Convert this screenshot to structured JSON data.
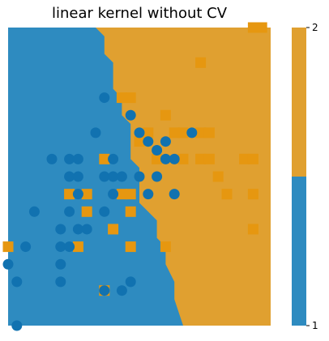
{
  "chart_data": {
    "type": "heatmap",
    "title": "linear kernel without CV",
    "xlabel": "",
    "ylabel": "",
    "xlim": [
      0,
      30
    ],
    "ylim": [
      0,
      34
    ],
    "grid": false,
    "colors": {
      "class1": "#2e8bc0",
      "class2": "#e0a030",
      "point1": "#1172b0",
      "point2": "#e69710"
    },
    "colorbar": {
      "ticks": [
        1,
        2
      ],
      "placement": "right"
    },
    "decision_boundary": {
      "x": [
        10,
        11,
        11,
        12,
        12,
        13,
        13,
        14,
        14,
        15,
        15,
        16,
        17,
        17,
        18,
        18,
        19,
        19,
        20
      ],
      "y": [
        34,
        33,
        31,
        30,
        27,
        26,
        24,
        23,
        19,
        18,
        14,
        13,
        12,
        10,
        9,
        7,
        5,
        3,
        0
      ]
    },
    "class1_points": [
      [
        11,
        26
      ],
      [
        14,
        24
      ],
      [
        15,
        22
      ],
      [
        10,
        22
      ],
      [
        21,
        22
      ],
      [
        16,
        21
      ],
      [
        18,
        21
      ],
      [
        17,
        20
      ],
      [
        18,
        19
      ],
      [
        19,
        19
      ],
      [
        5,
        19
      ],
      [
        7,
        19
      ],
      [
        8,
        19
      ],
      [
        12,
        19
      ],
      [
        7,
        17
      ],
      [
        8,
        17
      ],
      [
        11,
        17
      ],
      [
        12,
        17
      ],
      [
        13,
        17
      ],
      [
        15,
        17
      ],
      [
        17,
        17
      ],
      [
        8,
        15
      ],
      [
        12,
        15
      ],
      [
        16,
        15
      ],
      [
        19,
        15
      ],
      [
        3,
        13
      ],
      [
        7,
        13
      ],
      [
        11,
        13
      ],
      [
        6,
        11
      ],
      [
        8,
        11
      ],
      [
        9,
        11
      ],
      [
        2,
        9
      ],
      [
        6,
        9
      ],
      [
        7,
        9
      ],
      [
        0,
        7
      ],
      [
        6,
        7
      ],
      [
        1,
        5
      ],
      [
        6,
        5
      ],
      [
        14,
        5
      ],
      [
        11,
        4
      ],
      [
        13,
        4
      ],
      [
        1,
        0
      ]
    ],
    "class2_points": [
      [
        28,
        34
      ],
      [
        29,
        34
      ],
      [
        22,
        30
      ],
      [
        13,
        26
      ],
      [
        14,
        26
      ],
      [
        18,
        24
      ],
      [
        16,
        22
      ],
      [
        19,
        22
      ],
      [
        20,
        22
      ],
      [
        22,
        22
      ],
      [
        23,
        22
      ],
      [
        15,
        21
      ],
      [
        11,
        19
      ],
      [
        17,
        19
      ],
      [
        20,
        19
      ],
      [
        22,
        19
      ],
      [
        23,
        19
      ],
      [
        27,
        19
      ],
      [
        28,
        19
      ],
      [
        24,
        17
      ],
      [
        7,
        15
      ],
      [
        9,
        15
      ],
      [
        13,
        15
      ],
      [
        14,
        15
      ],
      [
        25,
        15
      ],
      [
        28,
        15
      ],
      [
        9,
        13
      ],
      [
        14,
        13
      ],
      [
        12,
        11
      ],
      [
        28,
        11
      ],
      [
        0,
        9
      ],
      [
        8,
        9
      ],
      [
        14,
        9
      ],
      [
        18,
        9
      ],
      [
        11,
        4
      ]
    ]
  }
}
